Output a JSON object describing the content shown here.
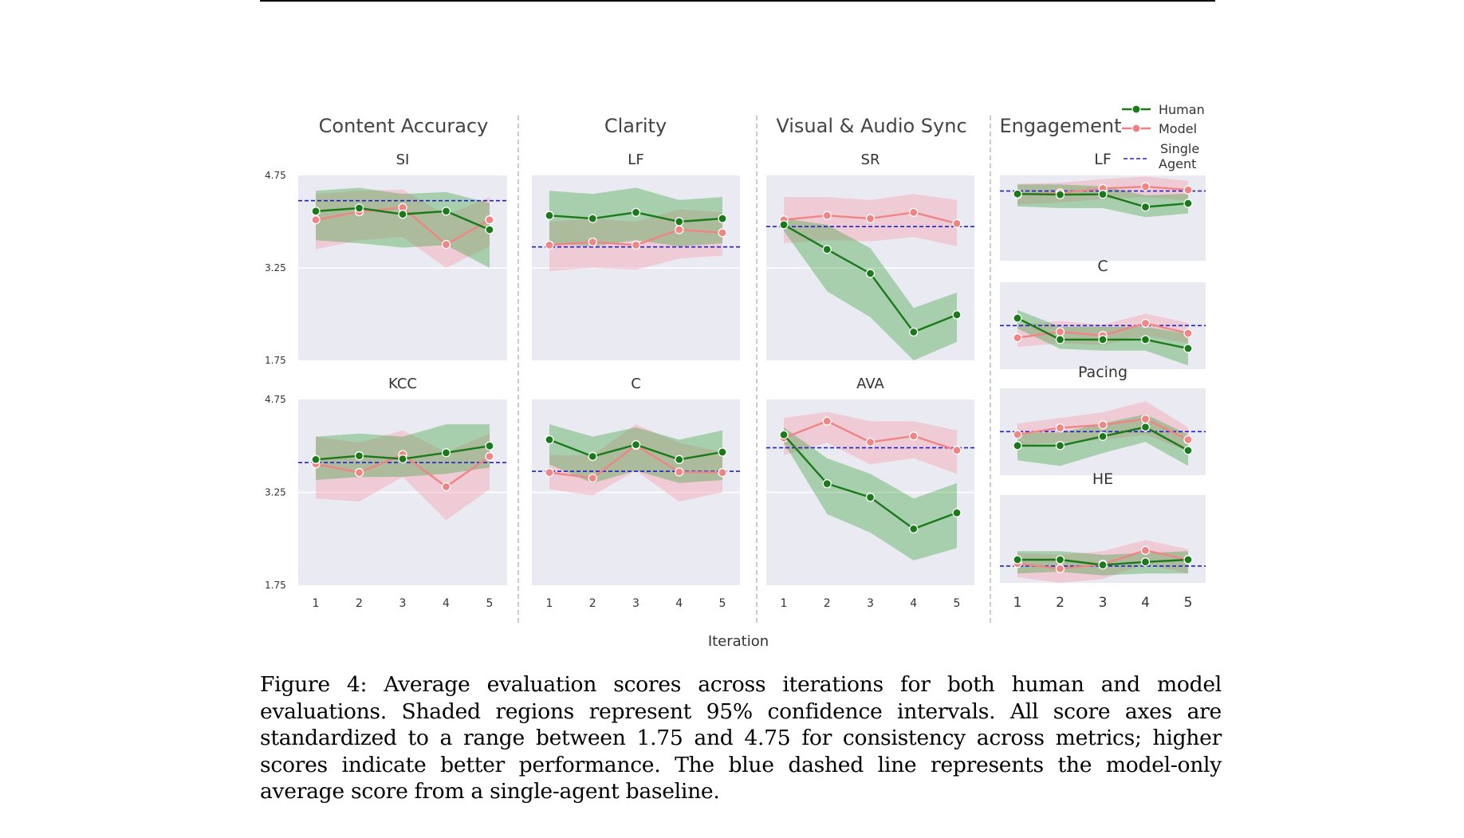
{
  "figure": {
    "xlabel": "Iteration",
    "caption": "Figure 4: Average evaluation scores across iterations for both human and model evaluations. Shaded regions represent 95% confidence intervals. All score axes are standardized to a range between 1.75 and 4.75 for consistency across metrics; higher scores indicate better performance. The blue dashed line represents the model-only average score from a single-agent baseline.",
    "legend": [
      {
        "label": "Human",
        "style": "line-marker",
        "color": "#1a7a1a"
      },
      {
        "label": "Model",
        "style": "line-marker",
        "color": "#f08080"
      },
      {
        "label": "Single Agent",
        "style": "dashed",
        "color": "#2222cc"
      }
    ],
    "groups": [
      "Content Accuracy",
      "Clarity",
      "Visual & Audio Sync",
      "Engagement"
    ],
    "colors": {
      "human": "#1a7a1a",
      "model": "#ef8585",
      "baseline": "#2222cc",
      "human_band": "#2e9e2e",
      "model_band": "#f7a6b4",
      "panel_bg": "#eaeaf2"
    }
  },
  "chart_data": [
    {
      "type": "line",
      "group": "Content Accuracy",
      "title": "SI",
      "x": [
        1,
        2,
        3,
        4,
        5
      ],
      "ylim": [
        1.75,
        4.75
      ],
      "yticks": [
        "4.75",
        "3.25",
        "1.75"
      ],
      "series": [
        {
          "name": "Human",
          "values": [
            4.17,
            4.22,
            4.12,
            4.17,
            3.87
          ],
          "lower": [
            3.7,
            3.65,
            3.58,
            3.62,
            3.25
          ],
          "upper": [
            4.5,
            4.55,
            4.45,
            4.48,
            4.3
          ]
        },
        {
          "name": "Model",
          "values": [
            4.03,
            4.16,
            4.23,
            3.63,
            4.03
          ],
          "lower": [
            3.55,
            3.7,
            3.75,
            3.25,
            3.6
          ],
          "upper": [
            4.45,
            4.5,
            4.52,
            4.1,
            4.4
          ]
        }
      ],
      "baseline": 4.34
    },
    {
      "type": "line",
      "group": "Clarity",
      "title": "LF",
      "x": [
        1,
        2,
        3,
        4,
        5
      ],
      "ylim": [
        1.75,
        4.75
      ],
      "yticks": [],
      "series": [
        {
          "name": "Human",
          "values": [
            4.1,
            4.05,
            4.15,
            4.0,
            4.05
          ],
          "lower": [
            3.65,
            3.6,
            3.7,
            3.6,
            3.65
          ],
          "upper": [
            4.5,
            4.45,
            4.55,
            4.35,
            4.4
          ]
        },
        {
          "name": "Model",
          "values": [
            3.62,
            3.67,
            3.62,
            3.87,
            3.82
          ],
          "lower": [
            3.2,
            3.25,
            3.22,
            3.4,
            3.45
          ],
          "upper": [
            4.0,
            4.05,
            4.0,
            4.2,
            4.15
          ]
        }
      ],
      "baseline": 3.59
    },
    {
      "type": "line",
      "group": "Visual & Audio Sync",
      "title": "SR",
      "x": [
        1,
        2,
        3,
        4,
        5
      ],
      "ylim": [
        1.75,
        4.75
      ],
      "yticks": [],
      "series": [
        {
          "name": "Human",
          "values": [
            3.95,
            3.55,
            3.16,
            2.21,
            2.49
          ],
          "lower": [
            3.85,
            2.87,
            2.45,
            1.75,
            2.05
          ],
          "upper": [
            4.05,
            3.95,
            3.57,
            2.6,
            2.85
          ]
        },
        {
          "name": "Model",
          "values": [
            4.03,
            4.1,
            4.05,
            4.15,
            3.97
          ],
          "lower": [
            3.65,
            3.7,
            3.68,
            3.75,
            3.6
          ],
          "upper": [
            4.4,
            4.4,
            4.35,
            4.45,
            4.35
          ]
        }
      ],
      "baseline": 3.92
    },
    {
      "type": "line",
      "group": "Engagement",
      "title": "LF",
      "x": [
        1,
        2,
        3,
        4,
        5
      ],
      "ylim": [
        1.75,
        4.75
      ],
      "yticks": [],
      "series": [
        {
          "name": "Human",
          "values": [
            4.44,
            4.42,
            4.43,
            4.08,
            4.18
          ],
          "lower": [
            4.1,
            4.05,
            4.05,
            3.8,
            3.9
          ],
          "upper": [
            4.7,
            4.7,
            4.65,
            4.4,
            4.45
          ]
        },
        {
          "name": "Model",
          "values": [
            4.42,
            4.47,
            4.59,
            4.64,
            4.55
          ],
          "lower": [
            4.15,
            4.2,
            4.3,
            4.35,
            4.25
          ],
          "upper": [
            4.72,
            4.75,
            4.85,
            4.92,
            4.8
          ]
        }
      ],
      "baseline": 4.52
    },
    {
      "type": "line",
      "group": "Engagement",
      "title": "C",
      "x": [
        1,
        2,
        3,
        4,
        5
      ],
      "ylim": [
        1.75,
        4.75
      ],
      "yticks": [],
      "series": [
        {
          "name": "Human",
          "values": [
            3.98,
            3.4,
            3.4,
            3.4,
            3.16
          ],
          "lower": [
            3.7,
            3.15,
            3.1,
            3.1,
            2.7
          ],
          "upper": [
            4.2,
            3.75,
            3.75,
            3.75,
            3.55
          ]
        },
        {
          "name": "Model",
          "values": [
            3.45,
            3.61,
            3.51,
            3.84,
            3.57
          ],
          "lower": [
            3.2,
            3.3,
            3.25,
            3.5,
            3.3
          ],
          "upper": [
            3.8,
            3.9,
            3.8,
            4.1,
            3.85
          ]
        }
      ],
      "baseline": 3.78
    },
    {
      "type": "line",
      "group": "Engagement",
      "title": "Pacing",
      "x": [
        1,
        2,
        3,
        4,
        5
      ],
      "ylim": [
        1.75,
        4.75
      ],
      "yticks": [],
      "series": [
        {
          "name": "Human",
          "values": [
            3.4,
            3.4,
            3.65,
            3.9,
            3.27
          ],
          "lower": [
            3.0,
            2.85,
            3.2,
            3.5,
            2.85
          ],
          "upper": [
            3.75,
            3.75,
            4.0,
            4.25,
            3.7
          ]
        },
        {
          "name": "Model",
          "values": [
            3.7,
            3.88,
            3.96,
            4.12,
            3.56
          ],
          "lower": [
            3.4,
            3.5,
            3.55,
            3.7,
            3.25
          ],
          "upper": [
            4.0,
            4.15,
            4.3,
            4.6,
            3.9
          ]
        }
      ],
      "baseline": 3.78
    },
    {
      "type": "line",
      "group": "Content Accuracy",
      "title": "KCC",
      "x": [
        1,
        2,
        3,
        4,
        5
      ],
      "ylim": [
        1.75,
        4.75
      ],
      "yticks": [
        "4.75",
        "3.25",
        "1.75"
      ],
      "series": [
        {
          "name": "Human",
          "values": [
            3.78,
            3.84,
            3.79,
            3.89,
            4.0
          ],
          "lower": [
            3.45,
            3.5,
            3.5,
            3.55,
            3.65
          ],
          "upper": [
            4.15,
            4.2,
            4.15,
            4.35,
            4.35
          ]
        },
        {
          "name": "Model",
          "values": [
            3.71,
            3.57,
            3.86,
            3.34,
            3.83
          ],
          "lower": [
            3.15,
            3.1,
            3.5,
            2.8,
            3.3
          ],
          "upper": [
            4.15,
            4.05,
            4.25,
            3.9,
            4.2
          ]
        }
      ],
      "baseline": 3.73
    },
    {
      "type": "line",
      "group": "Clarity",
      "title": "C",
      "x": [
        1,
        2,
        3,
        4,
        5
      ],
      "ylim": [
        1.75,
        4.75
      ],
      "yticks": [],
      "series": [
        {
          "name": "Human",
          "values": [
            4.1,
            3.83,
            4.02,
            3.78,
            3.9
          ],
          "lower": [
            3.7,
            3.4,
            3.6,
            3.4,
            3.45
          ],
          "upper": [
            4.35,
            4.15,
            4.3,
            4.1,
            4.25
          ]
        },
        {
          "name": "Model",
          "values": [
            3.57,
            3.48,
            4.01,
            3.58,
            3.57
          ],
          "lower": [
            3.3,
            3.2,
            3.6,
            3.1,
            3.25
          ],
          "upper": [
            3.85,
            3.85,
            4.35,
            4.05,
            3.9
          ]
        }
      ],
      "baseline": 3.59
    },
    {
      "type": "line",
      "group": "Visual & Audio Sync",
      "title": "AVA",
      "x": [
        1,
        2,
        3,
        4,
        5
      ],
      "ylim": [
        1.75,
        4.75
      ],
      "yticks": [],
      "series": [
        {
          "name": "Human",
          "values": [
            4.18,
            3.39,
            3.17,
            2.66,
            2.92
          ],
          "lower": [
            4.05,
            2.9,
            2.6,
            2.15,
            2.35
          ],
          "upper": [
            4.3,
            3.8,
            3.55,
            3.15,
            3.4
          ]
        },
        {
          "name": "Model",
          "values": [
            4.13,
            4.4,
            4.06,
            4.16,
            3.93
          ],
          "lower": [
            3.85,
            4.05,
            3.7,
            3.8,
            3.55
          ],
          "upper": [
            4.45,
            4.55,
            4.4,
            4.4,
            4.25
          ]
        }
      ],
      "baseline": 3.97
    },
    {
      "type": "line",
      "group": "Engagement",
      "title": "HE",
      "x": [
        1,
        2,
        3,
        4,
        5
      ],
      "ylim": [
        1.75,
        4.75
      ],
      "yticks": [],
      "series": [
        {
          "name": "Human",
          "values": [
            3.22,
            3.22,
            3.08,
            3.16,
            3.22
          ],
          "lower": [
            2.85,
            2.9,
            2.8,
            2.85,
            2.85
          ],
          "upper": [
            3.45,
            3.45,
            3.35,
            3.4,
            3.45
          ]
        },
        {
          "name": "Model",
          "values": [
            3.12,
            2.98,
            3.1,
            3.47,
            3.22
          ],
          "lower": [
            2.75,
            2.6,
            2.7,
            3.1,
            2.85
          ],
          "upper": [
            3.4,
            3.35,
            3.45,
            3.75,
            3.5
          ]
        }
      ],
      "baseline": 3.05
    }
  ]
}
